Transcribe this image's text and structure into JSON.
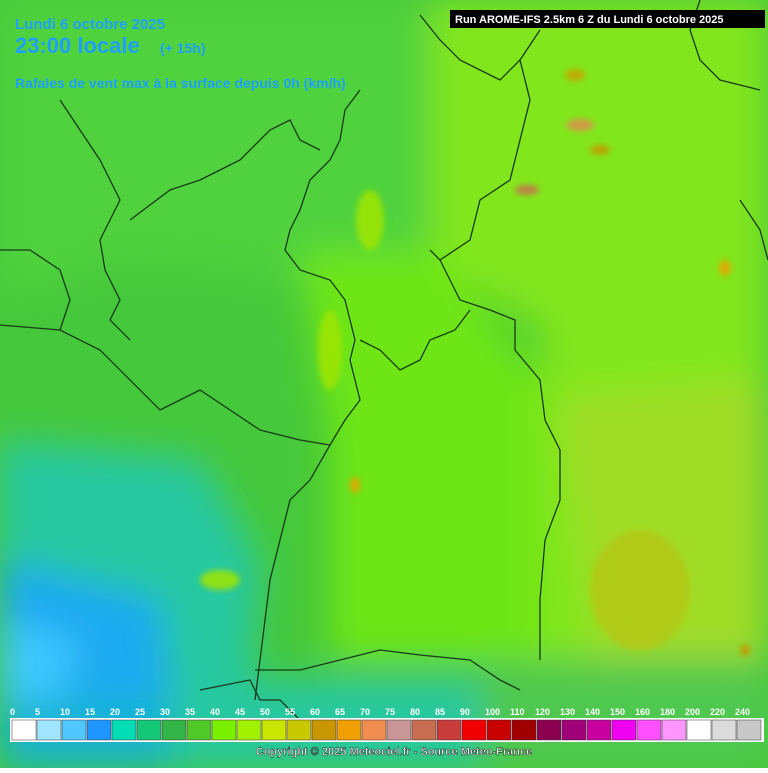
{
  "header": {
    "date": "Lundi 6 octobre 2025",
    "time": "23:00 locale",
    "lead": "(+ 15h)",
    "subtitle": "Rafales de vent max à la surface depuis 0h (km/h)",
    "run": "Run AROME-IFS 2.5km 6 Z du Lundi 6 octobre 2025"
  },
  "legend": {
    "items": [
      {
        "label": "0",
        "color": "#ffffff"
      },
      {
        "label": "5",
        "color": "#a0e6ff"
      },
      {
        "label": "10",
        "color": "#50c8ff"
      },
      {
        "label": "15",
        "color": "#1e96ff"
      },
      {
        "label": "20",
        "color": "#00dcb4"
      },
      {
        "label": "25",
        "color": "#14c878"
      },
      {
        "label": "30",
        "color": "#32b446"
      },
      {
        "label": "35",
        "color": "#50c828"
      },
      {
        "label": "40",
        "color": "#78f000"
      },
      {
        "label": "45",
        "color": "#a0f000"
      },
      {
        "label": "50",
        "color": "#c8e600"
      },
      {
        "label": "55",
        "color": "#c8c800"
      },
      {
        "label": "60",
        "color": "#c89600"
      },
      {
        "label": "65",
        "color": "#f0a000"
      },
      {
        "label": "70",
        "color": "#f08c50"
      },
      {
        "label": "75",
        "color": "#c89696"
      },
      {
        "label": "80",
        "color": "#c86e50"
      },
      {
        "label": "85",
        "color": "#c83c3c"
      },
      {
        "label": "90",
        "color": "#f00000"
      },
      {
        "label": "100",
        "color": "#c80000"
      },
      {
        "label": "110",
        "color": "#a00000"
      },
      {
        "label": "120",
        "color": "#8c0050"
      },
      {
        "label": "130",
        "color": "#a00078"
      },
      {
        "label": "140",
        "color": "#c800a0"
      },
      {
        "label": "150",
        "color": "#f000f0"
      },
      {
        "label": "160",
        "color": "#ff50ff"
      },
      {
        "label": "180",
        "color": "#ff96ff"
      },
      {
        "label": "200",
        "color": "#ffffff"
      },
      {
        "label": "220",
        "color": "#dcdcdc"
      },
      {
        "label": "240",
        "color": "#c8c8c8"
      }
    ]
  },
  "footer": {
    "copyright": "Copyright © 2025 Meteociel.fr - Source Meteo-France"
  }
}
